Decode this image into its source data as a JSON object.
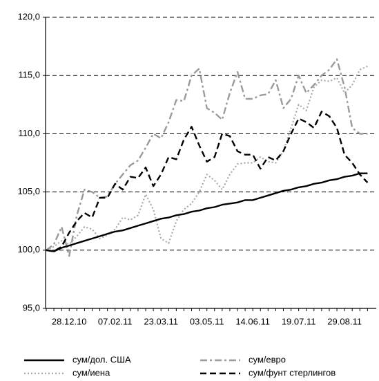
{
  "chart_data": {
    "type": "line",
    "categories": [
      null,
      null,
      null,
      "28.12.10",
      null,
      null,
      null,
      null,
      null,
      "07.02.11",
      null,
      null,
      null,
      null,
      null,
      "23.03.11",
      null,
      null,
      null,
      null,
      null,
      "03.05.11",
      null,
      null,
      null,
      null,
      null,
      "14.06.11",
      null,
      null,
      null,
      null,
      null,
      "19.07.11",
      null,
      null,
      null,
      null,
      null,
      "29.08.11",
      null,
      null,
      null
    ],
    "series": [
      {
        "name": "сум/дол. США",
        "color": "#000000",
        "dash": "solid",
        "values": [
          100.0,
          99.9,
          100.2,
          100.4,
          100.6,
          100.8,
          101.0,
          101.2,
          101.4,
          101.6,
          101.7,
          101.9,
          102.1,
          102.3,
          102.5,
          102.7,
          102.8,
          103.0,
          103.1,
          103.3,
          103.4,
          103.6,
          103.7,
          103.9,
          104.0,
          104.1,
          104.3,
          104.3,
          104.5,
          104.7,
          104.9,
          105.1,
          105.2,
          105.4,
          105.5,
          105.7,
          105.8,
          106.0,
          106.1,
          106.3,
          106.4,
          106.6,
          106.6
        ]
      },
      {
        "name": "сум/евро",
        "color": "#9a9a9a",
        "dash": "dashdot",
        "values": [
          100.0,
          100.5,
          102.0,
          99.5,
          103.0,
          105.2,
          105.0,
          104.5,
          104.6,
          105.7,
          106.5,
          107.3,
          107.7,
          108.8,
          110.0,
          109.6,
          111.0,
          112.9,
          112.8,
          115.0,
          115.6,
          112.2,
          111.8,
          111.2,
          113.5,
          115.3,
          113.0,
          113.0,
          113.3,
          113.4,
          114.6,
          112.2,
          113.0,
          115.0,
          113.5,
          114.2,
          115.0,
          115.5,
          116.4,
          114.0,
          110.5,
          110.0,
          110.0
        ]
      },
      {
        "name": "сум/иена",
        "color": "#a8a8a8",
        "dash": "dotted",
        "values": [
          100.0,
          100.3,
          100.8,
          100.5,
          101.2,
          102.0,
          101.8,
          101.0,
          101.3,
          101.8,
          102.8,
          102.6,
          103.0,
          104.8,
          103.5,
          101.0,
          100.6,
          102.5,
          103.5,
          104.0,
          105.0,
          106.5,
          106.0,
          105.2,
          106.5,
          107.4,
          107.5,
          107.5,
          108.0,
          107.6,
          107.5,
          108.5,
          110.5,
          112.5,
          112.0,
          114.0,
          114.6,
          114.5,
          114.8,
          113.5,
          114.2,
          115.5,
          115.8
        ]
      },
      {
        "name": "сум/фунт стерлингов",
        "color": "#000000",
        "dash": "dashed",
        "values": [
          100.0,
          99.9,
          100.3,
          101.5,
          102.5,
          103.2,
          102.8,
          104.5,
          104.5,
          105.7,
          105.2,
          106.3,
          106.2,
          107.1,
          105.5,
          106.5,
          108.0,
          107.8,
          109.5,
          110.6,
          109.0,
          107.6,
          108.0,
          110.0,
          109.8,
          108.5,
          108.2,
          108.2,
          107.0,
          108.0,
          107.7,
          108.5,
          110.0,
          111.3,
          111.0,
          110.5,
          111.9,
          111.5,
          110.5,
          108.2,
          107.5,
          106.5,
          105.8
        ]
      }
    ],
    "ylim": [
      95,
      120
    ],
    "yticks": [
      {
        "value": 95,
        "label": "95,0"
      },
      {
        "value": 100,
        "label": "100,0"
      },
      {
        "value": 105,
        "label": "105,0"
      },
      {
        "value": 110,
        "label": "110,0"
      },
      {
        "value": 115,
        "label": "115,0"
      },
      {
        "value": 120,
        "label": "120,0"
      }
    ],
    "grid": true,
    "legend": "bottom"
  }
}
